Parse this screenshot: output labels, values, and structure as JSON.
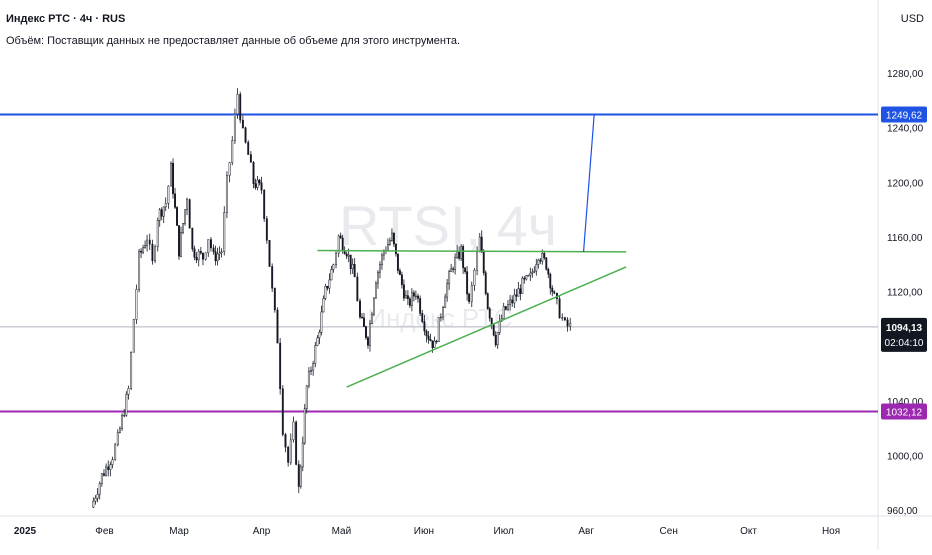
{
  "header": {
    "title": "Индекс РТС · 4ч · RUS",
    "volume_note": "Объём: Поставщик данных не предоставляет данные об объеме для этого инструмента."
  },
  "currency_label": "USD",
  "watermark": {
    "symbol": "RTSI, 4ч",
    "name": "Индекс РТС"
  },
  "colors": {
    "candle_up": "#131722",
    "candle_down": "#131722",
    "resistance_line": "#1e53e5",
    "support_line": "#9c27b0",
    "triangle_lines": "#4caf50",
    "projection_line": "#1e53e5",
    "last_price_line": "#b2b5be"
  },
  "chart_data": {
    "type": "candlestick",
    "x_axis": {
      "labels": [
        "2025",
        "Фев",
        "Мар",
        "Апр",
        "Май",
        "Июн",
        "Июл",
        "Авг",
        "Сен",
        "Окт",
        "Ноя"
      ],
      "range": [
        "2025-01-01",
        "2025-11-10"
      ]
    },
    "y_axis": {
      "ticks": [
        960,
        1000,
        1040,
        1080,
        1120,
        1160,
        1200,
        1240,
        1280
      ],
      "tick_labels": [
        "960,00",
        "1000,00",
        "1040,00",
        "1080,00",
        "1120,00",
        "1160,00",
        "1200,00",
        "1240,00",
        "1280,00"
      ],
      "range": [
        955,
        1320
      ]
    },
    "price_path": [
      [
        "2025-01-27",
        962
      ],
      [
        "2025-01-31",
        985
      ],
      [
        "2025-02-04",
        1000
      ],
      [
        "2025-02-06",
        1012
      ],
      [
        "2025-02-10",
        1048
      ],
      [
        "2025-02-12",
        1100
      ],
      [
        "2025-02-14",
        1145
      ],
      [
        "2025-02-17",
        1160
      ],
      [
        "2025-02-19",
        1140
      ],
      [
        "2025-02-21",
        1175
      ],
      [
        "2025-02-24",
        1185
      ],
      [
        "2025-02-26",
        1210
      ],
      [
        "2025-03-01",
        1150
      ],
      [
        "2025-03-04",
        1190
      ],
      [
        "2025-03-06",
        1150
      ],
      [
        "2025-03-10",
        1145
      ],
      [
        "2025-03-12",
        1160
      ],
      [
        "2025-03-14",
        1145
      ],
      [
        "2025-03-17",
        1150
      ],
      [
        "2025-03-19",
        1200
      ],
      [
        "2025-03-21",
        1230
      ],
      [
        "2025-03-23",
        1265
      ],
      [
        "2025-03-25",
        1235
      ],
      [
        "2025-03-27",
        1220
      ],
      [
        "2025-03-29",
        1200
      ],
      [
        "2025-04-01",
        1195
      ],
      [
        "2025-04-03",
        1160
      ],
      [
        "2025-04-05",
        1120
      ],
      [
        "2025-04-07",
        1085
      ],
      [
        "2025-04-09",
        1020
      ],
      [
        "2025-04-11",
        995
      ],
      [
        "2025-04-13",
        1020
      ],
      [
        "2025-04-15",
        975
      ],
      [
        "2025-04-18",
        1050
      ],
      [
        "2025-04-22",
        1085
      ],
      [
        "2025-04-25",
        1120
      ],
      [
        "2025-04-28",
        1140
      ],
      [
        "2025-04-30",
        1160
      ],
      [
        "2025-05-03",
        1150
      ],
      [
        "2025-05-06",
        1130
      ],
      [
        "2025-05-08",
        1100
      ],
      [
        "2025-05-11",
        1085
      ],
      [
        "2025-05-14",
        1130
      ],
      [
        "2025-05-17",
        1150
      ],
      [
        "2025-05-20",
        1160
      ],
      [
        "2025-05-23",
        1130
      ],
      [
        "2025-05-26",
        1110
      ],
      [
        "2025-05-29",
        1120
      ],
      [
        "2025-06-02",
        1090
      ],
      [
        "2025-06-05",
        1080
      ],
      [
        "2025-06-09",
        1120
      ],
      [
        "2025-06-12",
        1140
      ],
      [
        "2025-06-15",
        1150
      ],
      [
        "2025-06-18",
        1110
      ],
      [
        "2025-06-20",
        1135
      ],
      [
        "2025-06-22",
        1158
      ],
      [
        "2025-06-25",
        1110
      ],
      [
        "2025-06-28",
        1085
      ],
      [
        "2025-07-01",
        1105
      ],
      [
        "2025-07-05",
        1115
      ],
      [
        "2025-07-08",
        1125
      ],
      [
        "2025-07-11",
        1130
      ],
      [
        "2025-07-14",
        1148
      ],
      [
        "2025-07-17",
        1140
      ],
      [
        "2025-07-20",
        1115
      ],
      [
        "2025-07-22",
        1105
      ],
      [
        "2025-07-24",
        1095
      ],
      [
        "2025-07-26",
        1094.13
      ]
    ],
    "annotations": {
      "horizontal_levels": [
        {
          "name": "resistance",
          "value": 1249.62,
          "label": "1249,62"
        },
        {
          "name": "support",
          "value": 1032.12,
          "label": "1032,12"
        }
      ],
      "last_price": {
        "value": 1094.13,
        "label": "1094,13",
        "countdown": "02:04:10"
      },
      "triangle": {
        "top": {
          "from": [
            "2025-04-22",
            1150
          ],
          "to": [
            "2025-08-16",
            1149
          ]
        },
        "bottom": {
          "from": [
            "2025-05-03",
            1050
          ],
          "to": [
            "2025-08-16",
            1138
          ]
        }
      },
      "projection": {
        "from": [
          "2025-07-31",
          1149
        ],
        "to": [
          "2025-08-04",
          1249.62
        ]
      }
    },
    "grid": false
  }
}
